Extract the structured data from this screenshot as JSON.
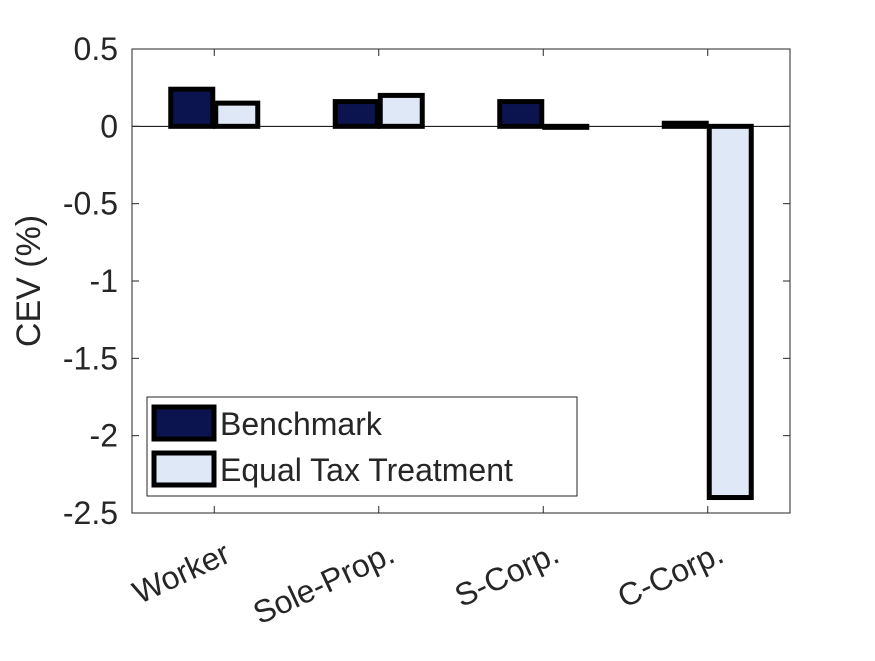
{
  "chart_data": {
    "type": "bar",
    "title": "",
    "xlabel": "",
    "ylabel": "CEV (%)",
    "categories": [
      "Worker",
      "Sole-Prop.",
      "S-Corp.",
      "C-Corp."
    ],
    "series": [
      {
        "name": "Benchmark",
        "values": [
          0.24,
          0.16,
          0.16,
          0.02
        ],
        "color": "#0c1450"
      },
      {
        "name": "Equal Tax Treatment",
        "values": [
          0.15,
          0.2,
          0.0,
          -2.4
        ],
        "color": "#dfe8f6"
      }
    ],
    "ylim": [
      -2.5,
      0.5
    ],
    "yticks": [
      0.5,
      0,
      -0.5,
      -1,
      -1.5,
      -2,
      -2.5
    ],
    "ytick_labels": [
      "0.5",
      "0",
      "-0.5",
      "-1",
      "-1.5",
      "-2",
      "-2.5"
    ],
    "grid": false,
    "legend_position": "bottom-left",
    "bar_edge_color": "#000000"
  }
}
